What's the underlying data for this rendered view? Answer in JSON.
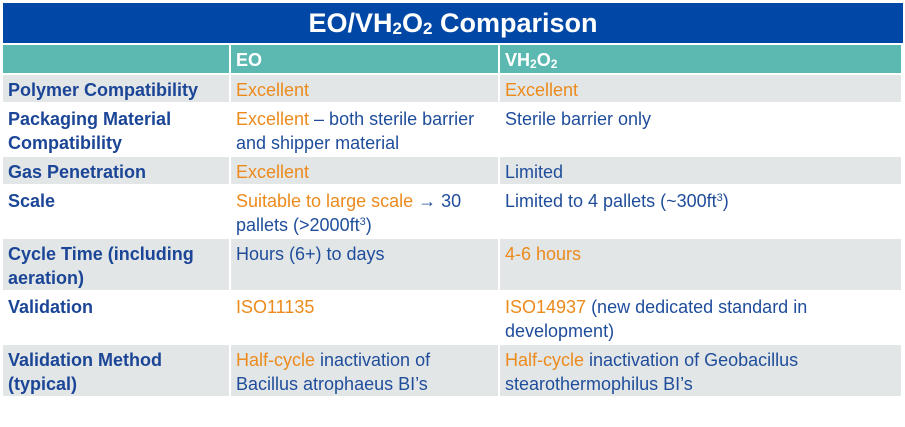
{
  "title": {
    "pre": "EO/VH",
    "sub1": "2",
    "mid": "O",
    "sub2": "2",
    "post": " Comparison"
  },
  "colors": {
    "title_bg": "#0047a6",
    "header_bg": "#5bb9b1",
    "row_gray": "#e3e6e7",
    "text_blue": "#1f4d9b",
    "text_orange": "#ec8a1c"
  },
  "header": {
    "col1": "",
    "col2": "EO",
    "col3": {
      "pre": "VH",
      "sub1": "2",
      "mid": "O",
      "sub2": "2"
    }
  },
  "rows": [
    {
      "label": "Polymer Compatibility",
      "bg": "gray",
      "eo": [
        {
          "t": "Excellent",
          "c": "orange"
        }
      ],
      "vh": [
        {
          "t": "Excellent",
          "c": "orange"
        }
      ]
    },
    {
      "label": "Packaging Material Compatibility",
      "bg": "white",
      "eo": [
        {
          "t": "Excellent",
          "c": "orange"
        },
        {
          "t": " – both sterile barrier and shipper material",
          "c": "blue"
        }
      ],
      "vh": [
        {
          "t": "Sterile barrier only",
          "c": "blue"
        }
      ]
    },
    {
      "label": "Gas Penetration",
      "bg": "gray",
      "eo": [
        {
          "t": "Excellent",
          "c": "orange"
        }
      ],
      "vh": [
        {
          "t": "Limited",
          "c": "blue"
        }
      ]
    },
    {
      "label": "Scale",
      "bg": "white",
      "eo": [
        {
          "t": "Suitable to large scale",
          "c": "orange"
        },
        {
          "t": " → 30 pallets (>2000ft",
          "c": "blue"
        },
        {
          "t": "3",
          "c": "sup"
        },
        {
          "t": ")",
          "c": "blue"
        }
      ],
      "vh": [
        {
          "t": "Limited to 4 pallets (~300ft",
          "c": "blue"
        },
        {
          "t": "3",
          "c": "sup"
        },
        {
          "t": ")",
          "c": "blue"
        }
      ]
    },
    {
      "label": "Cycle Time (including aeration)",
      "bg": "gray",
      "eo": [
        {
          "t": "Hours (6+) to days",
          "c": "blue"
        }
      ],
      "vh": [
        {
          "t": "4-6 hours",
          "c": "orange"
        }
      ]
    },
    {
      "label": "Validation",
      "bg": "white",
      "eo": [
        {
          "t": "ISO11135",
          "c": "orange"
        }
      ],
      "vh": [
        {
          "t": "ISO14937",
          "c": "orange"
        },
        {
          "t": " (new dedicated standard in development)",
          "c": "blue"
        }
      ]
    },
    {
      "label": "Validation Method (typical)",
      "bg": "gray",
      "eo": [
        {
          "t": "Half-cycle",
          "c": "orange"
        },
        {
          "t": " inactivation of Bacillus atrophaeus BI’s",
          "c": "blue"
        }
      ],
      "vh": [
        {
          "t": "Half-cycle",
          "c": "orange"
        },
        {
          "t": " inactivation of Geobacillus stearothermophilus BI’s",
          "c": "blue"
        }
      ]
    }
  ]
}
